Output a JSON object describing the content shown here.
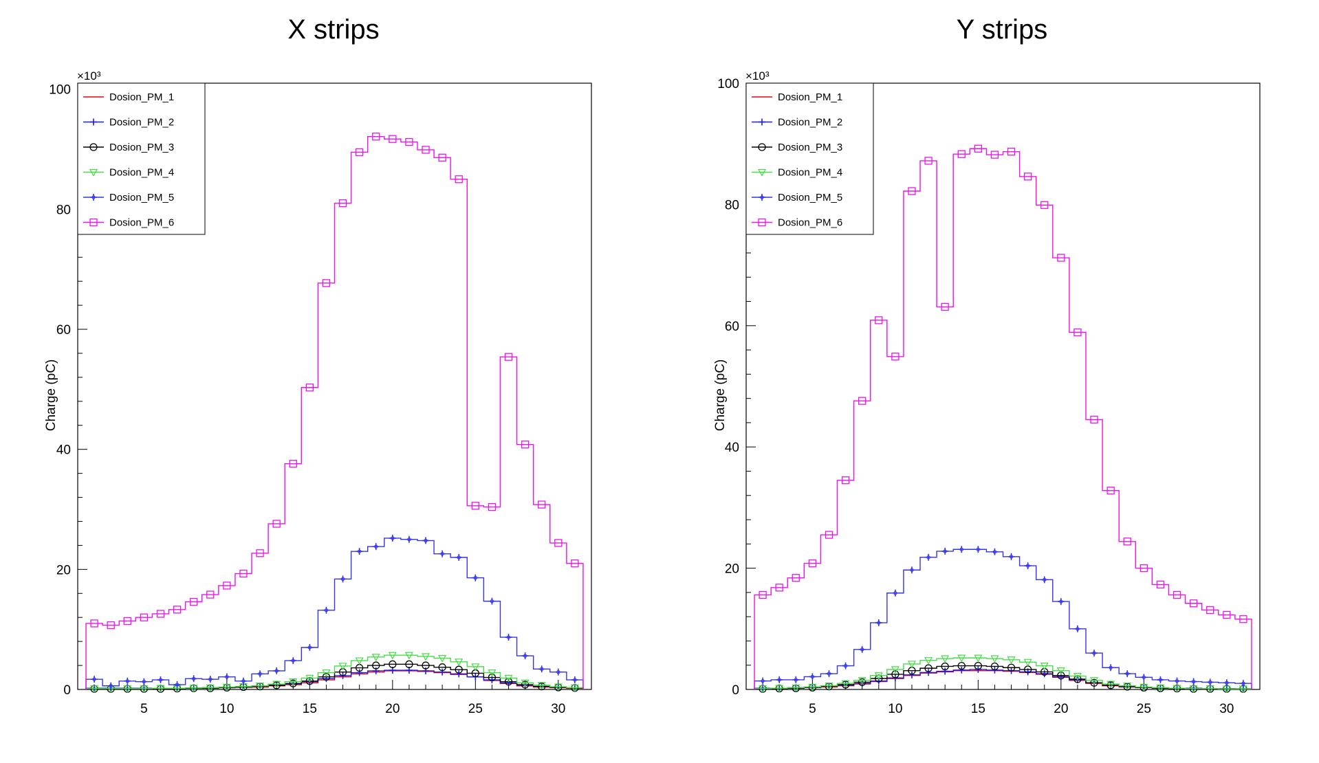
{
  "chart_data": [
    {
      "type": "line",
      "title": "X strips",
      "xlabel": "",
      "ylabel": "Charge (pC)",
      "y_exponent_label": "×10³",
      "xlim": [
        1,
        32
      ],
      "ylim": [
        0,
        101
      ],
      "xticks": [
        5,
        10,
        15,
        20,
        25,
        30
      ],
      "yticks": [
        0,
        20,
        40,
        60,
        80,
        100
      ],
      "x": [
        2,
        3,
        4,
        5,
        6,
        7,
        8,
        9,
        10,
        11,
        12,
        13,
        14,
        15,
        16,
        17,
        18,
        19,
        20,
        21,
        22,
        23,
        24,
        25,
        26,
        27,
        28,
        29,
        30,
        31
      ],
      "legend_position": "top-left",
      "series": [
        {
          "name": "Dosion_PM_1",
          "color": "#e8000b",
          "marker": "none",
          "values": [
            0.1,
            0.1,
            0.1,
            0.1,
            0.1,
            0.15,
            0.2,
            0.2,
            0.3,
            0.35,
            0.4,
            0.6,
            0.8,
            1.1,
            1.6,
            2.1,
            2.6,
            2.9,
            3.1,
            3.1,
            3.0,
            2.8,
            2.5,
            2.1,
            1.5,
            1.0,
            0.6,
            0.4,
            0.3,
            0.2
          ]
        },
        {
          "name": "Dosion_PM_2",
          "color": "#1a1ae6",
          "marker": "plus",
          "values": [
            0.2,
            0.2,
            0.2,
            0.2,
            0.2,
            0.2,
            0.25,
            0.3,
            0.35,
            0.4,
            0.5,
            0.7,
            0.9,
            1.3,
            1.8,
            2.3,
            2.8,
            3.1,
            3.2,
            3.2,
            3.1,
            2.9,
            2.6,
            2.1,
            1.6,
            1.1,
            0.7,
            0.5,
            0.35,
            0.25
          ]
        },
        {
          "name": "Dosion_PM_3",
          "color": "#000000",
          "marker": "circle",
          "values": [
            0.1,
            0.1,
            0.1,
            0.1,
            0.1,
            0.15,
            0.2,
            0.2,
            0.3,
            0.4,
            0.5,
            0.7,
            1.0,
            1.4,
            2.1,
            2.9,
            3.6,
            4.0,
            4.2,
            4.2,
            4.0,
            3.7,
            3.3,
            2.7,
            2.0,
            1.3,
            0.8,
            0.5,
            0.35,
            0.25
          ]
        },
        {
          "name": "Dosion_PM_4",
          "color": "#44dd44",
          "marker": "triangle-down",
          "values": [
            0.15,
            0.15,
            0.15,
            0.15,
            0.2,
            0.2,
            0.25,
            0.3,
            0.4,
            0.5,
            0.6,
            0.9,
            1.3,
            1.9,
            2.8,
            3.9,
            4.8,
            5.4,
            5.7,
            5.7,
            5.5,
            5.2,
            4.6,
            3.8,
            2.8,
            1.9,
            1.1,
            0.7,
            0.45,
            0.3
          ]
        },
        {
          "name": "Dosion_PM_5",
          "color": "#3333ee",
          "marker": "plus-circle",
          "values": [
            1.7,
            0.6,
            1.4,
            1.3,
            1.6,
            0.8,
            1.8,
            1.7,
            2.1,
            1.4,
            2.6,
            3.1,
            4.8,
            7.0,
            13.2,
            18.4,
            23.0,
            23.8,
            25.2,
            25.0,
            24.8,
            22.6,
            22.0,
            18.6,
            14.7,
            8.7,
            5.6,
            3.4,
            2.9,
            1.6
          ]
        },
        {
          "name": "Dosion_PM_6",
          "color": "#ee11ee",
          "marker": "square",
          "values": [
            11.0,
            10.7,
            11.4,
            12.0,
            12.6,
            13.3,
            14.6,
            15.8,
            17.3,
            19.3,
            22.7,
            27.6,
            37.6,
            50.3,
            67.7,
            81.0,
            89.5,
            92.1,
            91.7,
            91.2,
            89.9,
            88.6,
            85.0,
            30.6,
            30.4,
            55.4,
            40.8,
            30.8,
            24.4,
            21.0
          ]
        }
      ]
    },
    {
      "type": "line",
      "title": "Y strips",
      "xlabel": "",
      "ylabel": "Charge (pC)",
      "y_exponent_label": "×10³",
      "xlim": [
        1,
        32
      ],
      "ylim": [
        0,
        100
      ],
      "xticks": [
        5,
        10,
        15,
        20,
        25,
        30
      ],
      "yticks": [
        0,
        20,
        40,
        60,
        80,
        100
      ],
      "x": [
        2,
        3,
        4,
        5,
        6,
        7,
        8,
        9,
        10,
        11,
        12,
        13,
        14,
        15,
        16,
        17,
        18,
        19,
        20,
        21,
        22,
        23,
        24,
        25,
        26,
        27,
        28,
        29,
        30,
        31
      ],
      "legend_position": "top-left",
      "series": [
        {
          "name": "Dosion_PM_1",
          "color": "#e8000b",
          "marker": "none",
          "values": [
            0.1,
            0.15,
            0.2,
            0.3,
            0.4,
            0.6,
            0.9,
            1.3,
            1.8,
            2.3,
            2.7,
            2.9,
            3.1,
            3.1,
            3.1,
            3.0,
            2.8,
            2.5,
            2.0,
            1.5,
            1.0,
            0.6,
            0.4,
            0.3,
            0.2,
            0.15,
            0.1,
            0.1,
            0.1,
            0.1
          ]
        },
        {
          "name": "Dosion_PM_2",
          "color": "#1a1ae6",
          "marker": "plus",
          "values": [
            0.2,
            0.2,
            0.3,
            0.4,
            0.5,
            0.7,
            1.0,
            1.4,
            1.9,
            2.4,
            2.8,
            3.0,
            3.2,
            3.3,
            3.2,
            3.1,
            2.9,
            2.6,
            2.1,
            1.6,
            1.1,
            0.7,
            0.5,
            0.35,
            0.25,
            0.2,
            0.2,
            0.15,
            0.15,
            0.1
          ]
        },
        {
          "name": "Dosion_PM_3",
          "color": "#000000",
          "marker": "circle",
          "values": [
            0.1,
            0.15,
            0.2,
            0.3,
            0.5,
            0.8,
            1.2,
            1.8,
            2.5,
            3.1,
            3.5,
            3.8,
            3.9,
            3.9,
            3.8,
            3.6,
            3.3,
            2.9,
            2.3,
            1.7,
            1.1,
            0.7,
            0.45,
            0.3,
            0.2,
            0.15,
            0.1,
            0.1,
            0.1,
            0.1
          ]
        },
        {
          "name": "Dosion_PM_4",
          "color": "#44dd44",
          "marker": "triangle-down",
          "values": [
            0.15,
            0.2,
            0.3,
            0.4,
            0.6,
            1.0,
            1.5,
            2.3,
            3.3,
            4.2,
            4.8,
            5.1,
            5.2,
            5.2,
            5.1,
            4.9,
            4.5,
            3.9,
            3.1,
            2.2,
            1.5,
            0.9,
            0.6,
            0.4,
            0.3,
            0.2,
            0.15,
            0.15,
            0.1,
            0.1
          ]
        },
        {
          "name": "Dosion_PM_5",
          "color": "#3333ee",
          "marker": "plus-circle",
          "values": [
            1.4,
            1.6,
            1.6,
            2.1,
            2.6,
            3.9,
            6.6,
            11.0,
            15.9,
            19.7,
            21.8,
            22.8,
            23.1,
            23.1,
            22.7,
            21.9,
            20.4,
            18.1,
            14.5,
            10.0,
            6.0,
            3.6,
            2.6,
            2.0,
            1.6,
            1.4,
            1.3,
            1.2,
            1.1,
            1.0
          ]
        },
        {
          "name": "Dosion_PM_6",
          "color": "#ee11ee",
          "marker": "square",
          "values": [
            15.6,
            16.8,
            18.4,
            20.8,
            25.5,
            34.5,
            47.6,
            60.9,
            54.9,
            82.2,
            87.2,
            63.1,
            88.3,
            89.2,
            88.2,
            88.7,
            84.6,
            79.9,
            71.2,
            58.9,
            44.5,
            32.8,
            24.4,
            20.0,
            17.3,
            15.6,
            14.2,
            13.1,
            12.3,
            11.6
          ]
        }
      ]
    }
  ]
}
